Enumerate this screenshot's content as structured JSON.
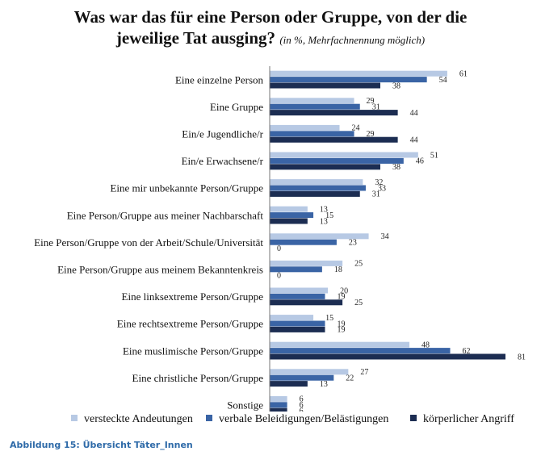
{
  "chart_data": {
    "type": "bar",
    "orientation": "horizontal",
    "title": "Was war das für eine Person oder Gruppe, von der die jeweilige Tat ausging?",
    "title_line1": "Was war das für eine Person oder Gruppe, von der die",
    "title_line2": "jeweilige Tat ausging?",
    "subtitle": "(in %, Mehrfachnennung möglich)",
    "categories": [
      "Eine einzelne Person",
      "Eine Gruppe",
      "Ein/e Jugendliche/r",
      "Ein/e Erwachsene/r",
      "Eine mir unbekannte Person/Gruppe",
      "Eine Person/Gruppe aus meiner Nachbarschaft",
      "Eine Person/Gruppe von der Arbeit/Schule/Universität",
      "Eine Person/Gruppe aus meinem Bekanntenkreis",
      "Eine linksextreme Person/Gruppe",
      "Eine rechtsextreme Person/Gruppe",
      "Eine muslimische Person/Gruppe",
      "Eine christliche Person/Gruppe",
      "Sonstige"
    ],
    "series": [
      {
        "name": "versteckte Andeutungen",
        "color": "#b7c9e4",
        "values": [
          61,
          29,
          24,
          51,
          32,
          13,
          34,
          25,
          20,
          15,
          48,
          27,
          6
        ]
      },
      {
        "name": "verbale Beleidigungen/Belästigungen",
        "color": "#3a64a5",
        "values": [
          54,
          31,
          29,
          46,
          33,
          15,
          23,
          18,
          19,
          19,
          62,
          22,
          6
        ]
      },
      {
        "name": "körperlicher Angriff",
        "color": "#1c2d52",
        "values": [
          38,
          44,
          44,
          38,
          31,
          13,
          0,
          0,
          25,
          19,
          81,
          13,
          6
        ]
      }
    ],
    "xlim": [
      0,
      81
    ],
    "grid": false,
    "legend_position": "bottom",
    "data_labels": true
  },
  "caption": "Abbildung 15: Übersicht Täter_Innen"
}
